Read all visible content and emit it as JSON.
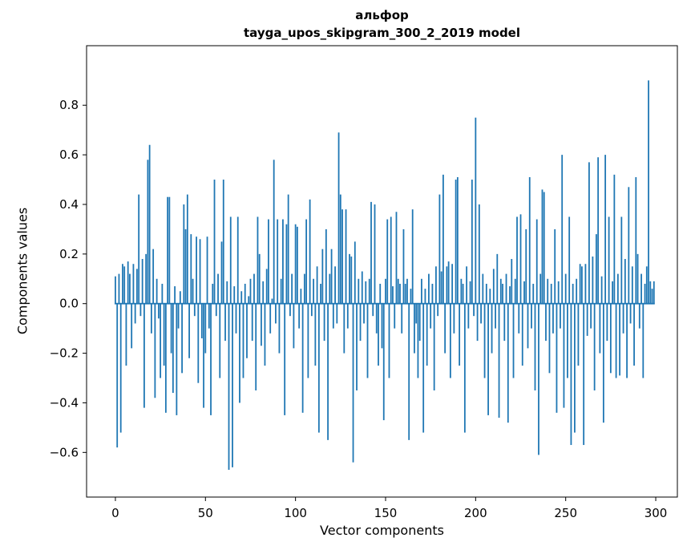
{
  "chart_data": {
    "type": "bar",
    "title": "альфор",
    "subtitle": "tayga_upos_skipgram_300_2_2019 model",
    "xlabel": "Vector components",
    "ylabel": "Components values",
    "bar_color": "#1f77b4",
    "grid": false,
    "legend": null,
    "n_components": 300,
    "xlim": [
      -16,
      312
    ],
    "ylim": [
      -0.78,
      1.04
    ],
    "xticks": [
      0,
      50,
      100,
      150,
      200,
      250,
      300
    ],
    "yticks": [
      -0.6,
      -0.4,
      -0.2,
      0.0,
      0.2,
      0.4,
      0.6,
      0.8
    ],
    "values": [
      0.11,
      -0.58,
      0.12,
      -0.52,
      0.16,
      0.15,
      -0.25,
      0.17,
      0.12,
      -0.18,
      0.16,
      -0.08,
      0.14,
      0.44,
      -0.05,
      0.18,
      -0.42,
      0.2,
      0.58,
      0.64,
      -0.12,
      0.22,
      -0.38,
      0.1,
      -0.06,
      -0.3,
      0.08,
      -0.25,
      -0.44,
      0.43,
      0.43,
      -0.2,
      -0.36,
      0.07,
      -0.45,
      -0.1,
      0.05,
      -0.28,
      0.4,
      0.3,
      0.44,
      -0.22,
      0.28,
      0.1,
      -0.05,
      0.27,
      -0.32,
      0.26,
      -0.14,
      -0.42,
      -0.2,
      0.27,
      -0.1,
      -0.45,
      0.08,
      0.5,
      -0.05,
      0.12,
      -0.3,
      0.25,
      0.5,
      -0.15,
      0.09,
      -0.67,
      0.35,
      -0.66,
      0.07,
      -0.12,
      0.35,
      -0.4,
      0.05,
      -0.3,
      0.08,
      -0.22,
      0.03,
      0.1,
      -0.15,
      0.12,
      -0.35,
      0.35,
      0.2,
      -0.17,
      0.09,
      -0.25,
      0.14,
      0.34,
      -0.12,
      0.02,
      0.58,
      -0.08,
      0.34,
      -0.2,
      0.1,
      0.34,
      -0.45,
      0.32,
      0.44,
      -0.05,
      0.12,
      -0.18,
      0.32,
      0.31,
      -0.1,
      0.06,
      -0.44,
      0.12,
      0.34,
      -0.3,
      0.42,
      -0.05,
      0.1,
      -0.25,
      0.15,
      -0.52,
      0.08,
      0.22,
      -0.15,
      0.3,
      -0.55,
      0.12,
      0.22,
      -0.1,
      0.15,
      -0.08,
      0.69,
      0.44,
      0.38,
      -0.2,
      0.38,
      -0.1,
      0.2,
      0.19,
      -0.64,
      0.25,
      -0.35,
      0.1,
      -0.15,
      0.13,
      -0.08,
      0.09,
      -0.3,
      0.1,
      0.41,
      -0.05,
      0.4,
      -0.12,
      -0.25,
      0.08,
      -0.18,
      -0.47,
      0.1,
      0.34,
      -0.3,
      0.35,
      0.07,
      -0.1,
      0.37,
      0.1,
      0.08,
      -0.12,
      0.3,
      0.08,
      0.1,
      -0.55,
      0.06,
      0.38,
      -0.2,
      -0.08,
      -0.3,
      -0.15,
      0.1,
      -0.52,
      0.06,
      -0.25,
      0.12,
      -0.1,
      0.08,
      -0.35,
      0.15,
      -0.05,
      0.44,
      0.13,
      0.52,
      -0.2,
      0.15,
      0.17,
      -0.3,
      0.16,
      -0.12,
      0.5,
      0.51,
      -0.25,
      0.1,
      0.08,
      -0.52,
      0.15,
      -0.1,
      0.09,
      0.5,
      -0.05,
      0.75,
      -0.15,
      0.4,
      -0.08,
      0.12,
      -0.3,
      0.08,
      -0.45,
      0.06,
      -0.2,
      0.14,
      -0.1,
      0.2,
      -0.46,
      0.1,
      0.08,
      -0.15,
      0.12,
      -0.48,
      0.07,
      0.18,
      -0.3,
      0.1,
      0.35,
      -0.12,
      0.36,
      -0.25,
      0.09,
      0.3,
      -0.18,
      0.51,
      -0.1,
      0.08,
      -0.35,
      0.34,
      -0.61,
      0.12,
      0.46,
      0.45,
      -0.15,
      0.1,
      -0.28,
      0.08,
      -0.12,
      0.3,
      -0.44,
      0.09,
      -0.1,
      0.6,
      -0.42,
      0.12,
      -0.3,
      0.35,
      -0.57,
      0.08,
      -0.52,
      0.1,
      -0.25,
      0.16,
      0.15,
      -0.57,
      0.16,
      -0.13,
      0.57,
      -0.1,
      0.19,
      -0.35,
      0.28,
      0.59,
      -0.2,
      0.11,
      -0.48,
      0.6,
      -0.15,
      0.35,
      -0.28,
      0.09,
      0.52,
      -0.3,
      0.12,
      -0.29,
      0.35,
      -0.12,
      0.18,
      -0.3,
      0.47,
      -0.08,
      0.15,
      -0.25,
      0.51,
      0.2,
      -0.1,
      0.12,
      -0.3,
      0.08,
      0.15,
      0.9,
      0.09,
      0.06,
      0.09
    ]
  }
}
